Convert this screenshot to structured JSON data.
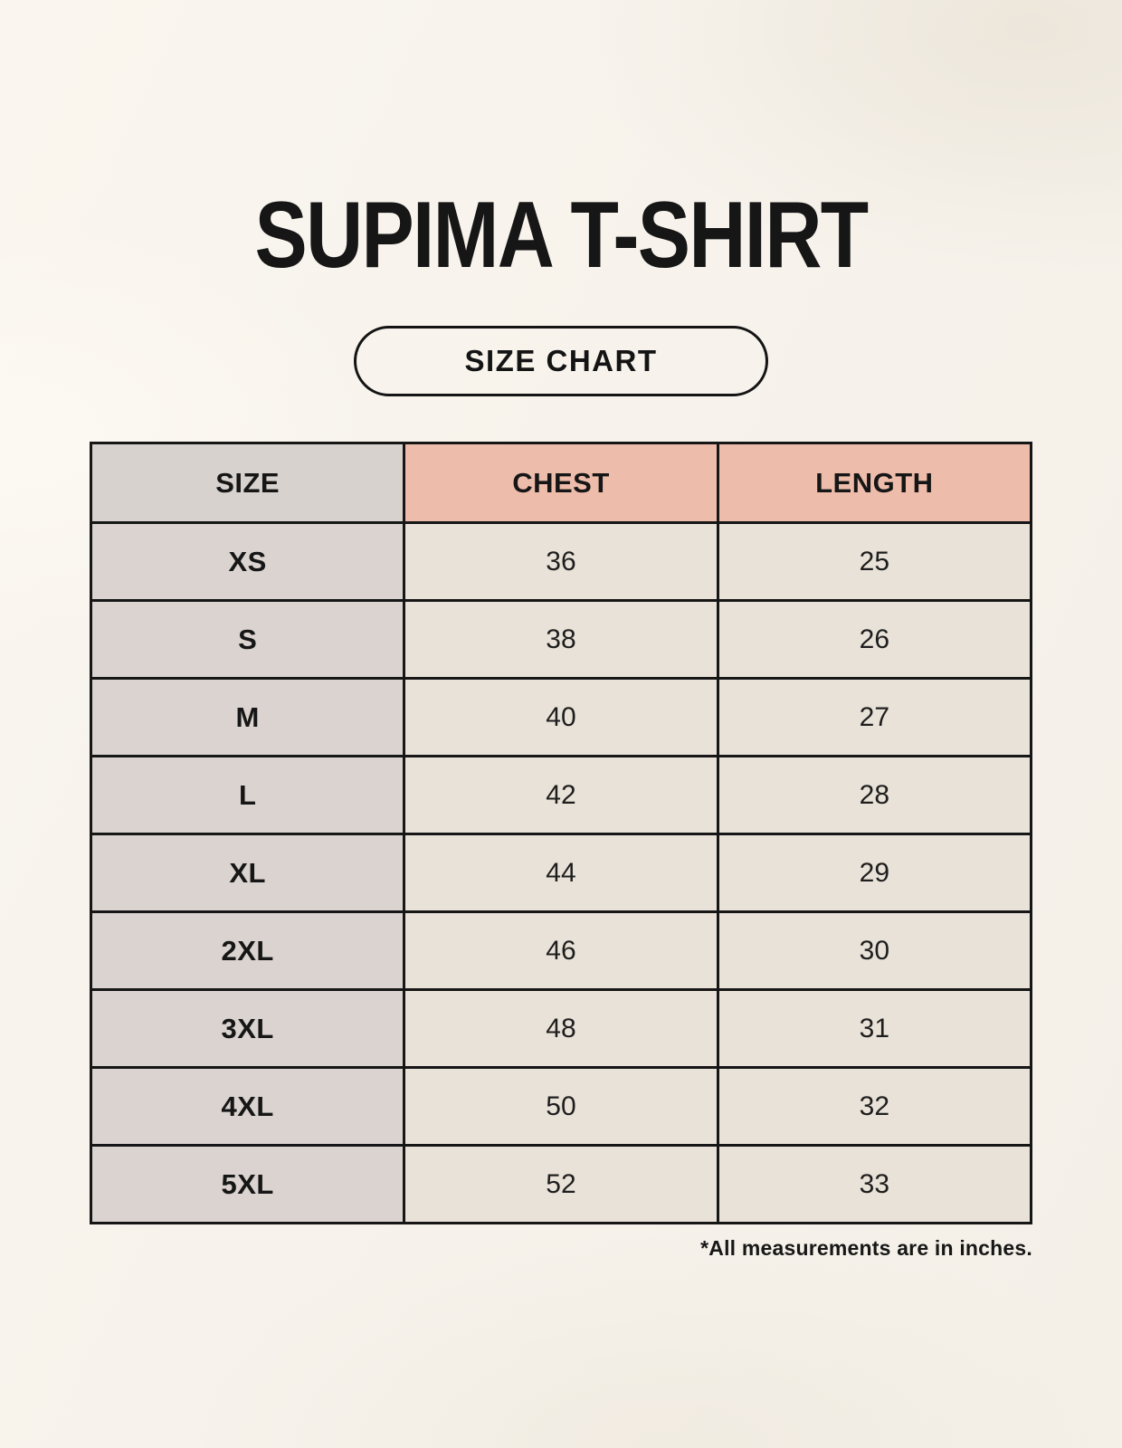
{
  "page": {
    "title": "SUPIMA T-SHIRT",
    "button_label": "SIZE CHART",
    "footnote": "*All measurements are in inches."
  },
  "table": {
    "columns": [
      "SIZE",
      "CHEST",
      "LENGTH"
    ],
    "rows": [
      {
        "size": "XS",
        "chest": "36",
        "length": "25"
      },
      {
        "size": "S",
        "chest": "38",
        "length": "26"
      },
      {
        "size": "M",
        "chest": "40",
        "length": "27"
      },
      {
        "size": "L",
        "chest": "42",
        "length": "28"
      },
      {
        "size": "XL",
        "chest": "44",
        "length": "29"
      },
      {
        "size": "2XL",
        "chest": "46",
        "length": "30"
      },
      {
        "size": "3XL",
        "chest": "48",
        "length": "31"
      },
      {
        "size": "4XL",
        "chest": "50",
        "length": "32"
      },
      {
        "size": "5XL",
        "chest": "52",
        "length": "33"
      }
    ]
  },
  "colors": {
    "accent": "#eebcab",
    "gray-col": "#d8d2ce",
    "gray-col-row": "#dad3cf",
    "cell-bg": "#e9e2d8",
    "page-bg": "#f7f3ec",
    "border": "#161616"
  }
}
